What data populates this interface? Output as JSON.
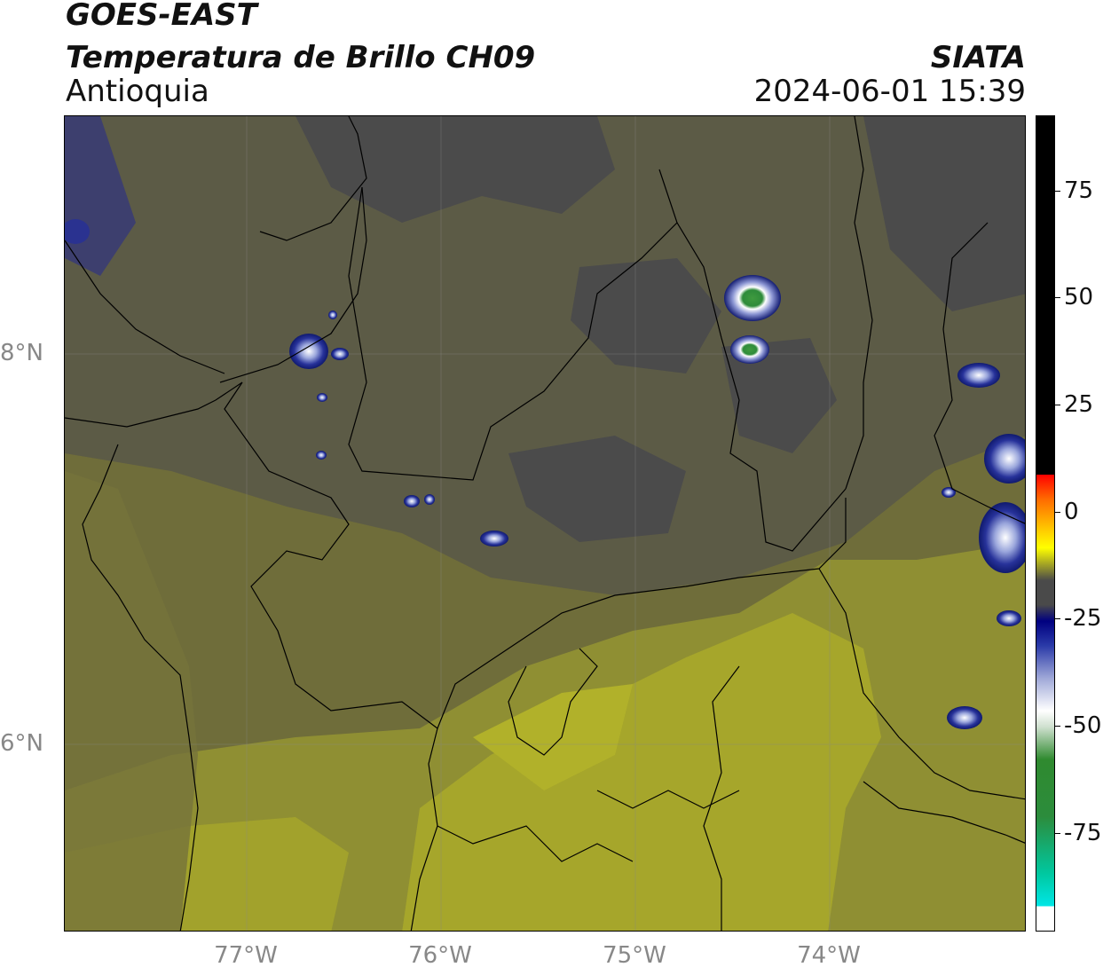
{
  "header": {
    "line1": "GOES-EAST",
    "line2": "Temperatura de Brillo CH09",
    "region": "Antioquia",
    "org": "SIATA",
    "timestamp": "2024-06-01 15:39"
  },
  "axes": {
    "lat_labels": [
      "8°N",
      "6°N"
    ],
    "lon_labels": [
      "77°W",
      "76°W",
      "75°W",
      "74°W"
    ]
  },
  "colorbar": {
    "ticks": [
      "75",
      "50",
      "25",
      "0",
      "-25",
      "-50",
      "-75"
    ]
  },
  "colors": {
    "cold_tops_blue": "#1a237e",
    "coldest_green": "#2e8b3a",
    "warm_yellow": "#a9a92a",
    "mid_olive": "#6f6d3a",
    "dark_gray": "#4b4b4b"
  }
}
